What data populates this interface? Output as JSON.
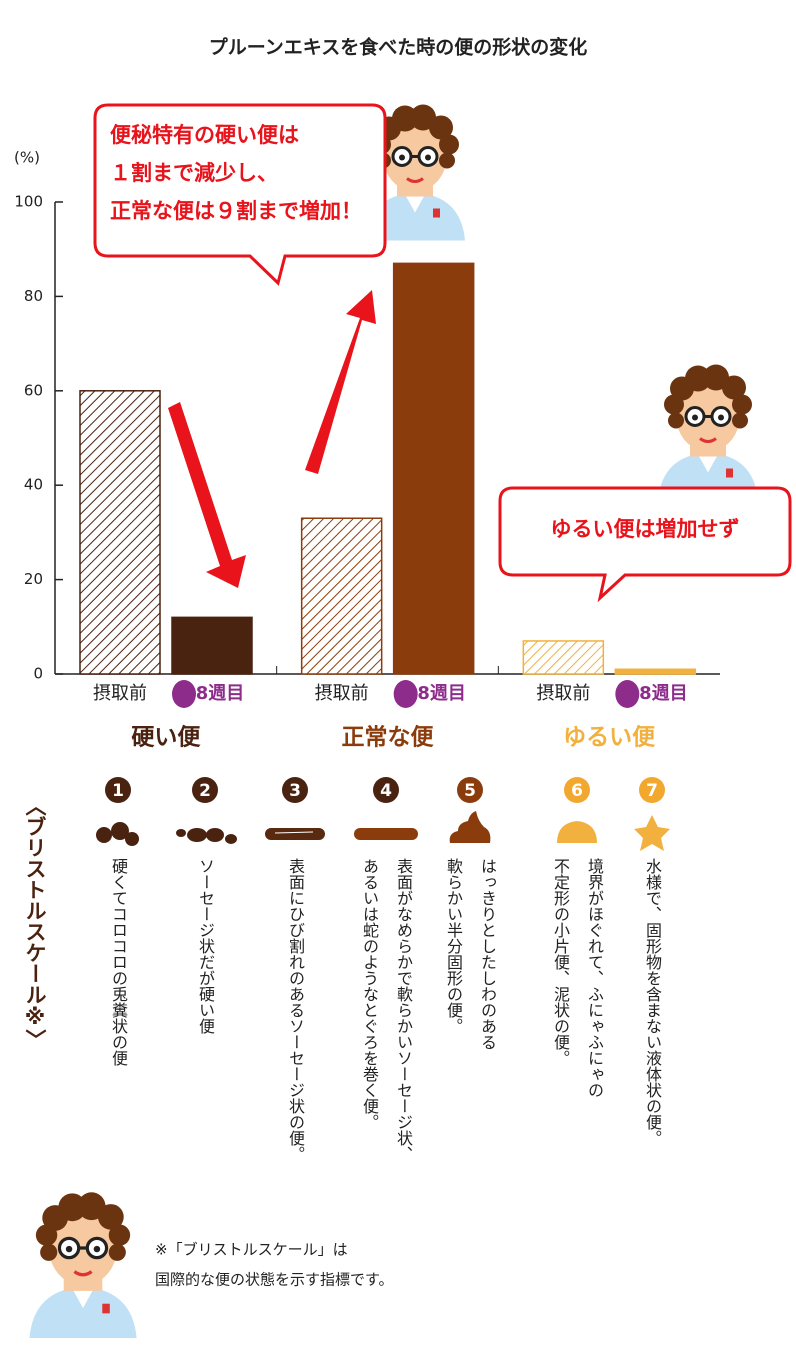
{
  "chart_data": {
    "type": "bar",
    "title": "プルーンエキスを食べた時の便の形状の変化",
    "y_label": "(%)",
    "categories": [
      "硬い便",
      "正常な便",
      "ゆるい便"
    ],
    "category_colors": [
      "#4a2210",
      "#8b3c0c",
      "#f2b13e"
    ],
    "series": [
      {
        "name": "摂取前",
        "style": "hatched",
        "values": [
          60,
          33,
          7
        ]
      },
      {
        "name": "8週目",
        "style": "solid",
        "values": [
          12,
          87,
          1
        ]
      }
    ],
    "ylim": [
      0,
      100
    ],
    "yticks": [
      0,
      20,
      40,
      60,
      80,
      100
    ],
    "grid": false,
    "annotations": [
      {
        "lines": [
          "便秘特有の硬い便は",
          "１割まで減少し、",
          "正常な便は９割まで増加！"
        ]
      },
      {
        "lines": [
          "ゆるい便は増加せず"
        ]
      }
    ]
  },
  "bristol_scale": {
    "title": "〈ブリストルスケール※〉",
    "items": [
      {
        "number": 1,
        "lines": [
          "硬くてコロコロの兎糞状の便"
        ]
      },
      {
        "number": 2,
        "lines": [
          "ソーセージ状だが硬い便"
        ]
      },
      {
        "number": 3,
        "lines": [
          "表面にひび割れのあるソーセージ状の便。"
        ]
      },
      {
        "number": 4,
        "lines": [
          "表面がなめらかで軟らかいソーセージ状、",
          "あるいは蛇のようなとぐろを巻く便。"
        ]
      },
      {
        "number": 5,
        "lines": [
          "はっきりとしたしわのある",
          "軟らかい半分固形の便。"
        ]
      },
      {
        "number": 6,
        "lines": [
          "境界がほぐれて、ふにゃふにゃの",
          "不定形の小片便、泥状の便。"
        ]
      },
      {
        "number": 7,
        "lines": [
          "水様で、固形物を含まない液体状の便。"
        ]
      }
    ],
    "note": [
      "※「ブリストルスケール」は",
      "国際的な便の状態を示す指標です。"
    ]
  }
}
